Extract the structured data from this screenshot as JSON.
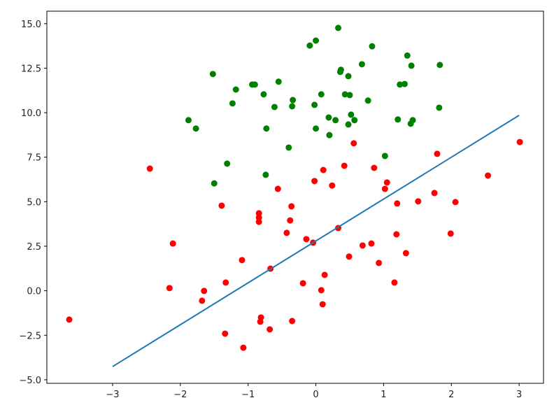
{
  "chart_data": {
    "type": "scatter",
    "xlim": [
      -3.97,
      3.36
    ],
    "ylim": [
      -5.2,
      15.7
    ],
    "xticks": [
      {
        "value": -3,
        "label": "−3"
      },
      {
        "value": -2,
        "label": "−2"
      },
      {
        "value": -1,
        "label": "−1"
      },
      0,
      1,
      2,
      3
    ],
    "yticks": [
      {
        "value": -5,
        "label": "−5.0"
      },
      {
        "value": -2.5,
        "label": "−2.5"
      },
      {
        "value": 0,
        "label": "0.0"
      },
      {
        "value": 2.5,
        "label": "2.5"
      },
      {
        "value": 5,
        "label": "5.0"
      },
      {
        "value": 7.5,
        "label": "7.5"
      },
      {
        "value": 10,
        "label": "10.0"
      },
      {
        "value": 12.5,
        "label": "12.5"
      },
      {
        "value": 15,
        "label": "15.0"
      }
    ],
    "series": [
      {
        "type": "scatter",
        "color": "#008000",
        "x": [
          0.33,
          0,
          -0.09,
          0.83,
          1.35,
          1.41,
          1.83,
          0.68,
          0.37,
          0.36,
          0.48,
          -1.52,
          -0.55,
          -0.94,
          -0.9,
          -1.18,
          1.24,
          1.31,
          -0.77,
          0.08,
          0.43,
          0.5,
          -0.34,
          -0.35,
          -0.61,
          -1.23,
          -0.02,
          0.77,
          1.82,
          0.52,
          0.19,
          0.29,
          0.57,
          1.21,
          1.43,
          1.4,
          -1.88,
          -1.77,
          -0.73,
          0,
          0.48,
          0.2,
          -0.4,
          1.02,
          -1.31,
          -0.74,
          -1.5
        ],
        "values": [
          14.76,
          14.05,
          13.77,
          13.73,
          13.21,
          12.64,
          12.68,
          12.72,
          12.41,
          12.29,
          12.05,
          12.17,
          11.74,
          11.58,
          11.58,
          11.3,
          11.58,
          11.61,
          11.03,
          11.03,
          11.03,
          10.99,
          10.71,
          10.36,
          10.32,
          10.52,
          10.44,
          10.68,
          10.28,
          9.89,
          9.73,
          9.58,
          9.58,
          9.62,
          9.58,
          9.38,
          9.58,
          9.11,
          9.11,
          9.11,
          9.34,
          8.74,
          8.04,
          7.57,
          7.14,
          6.51,
          6.03
        ]
      },
      {
        "type": "scatter",
        "color": "#ff0000",
        "x": [
          -3.64,
          -2.45,
          -2.11,
          -2.16,
          -1.65,
          -1.68,
          -1.39,
          -1.33,
          -1.34,
          -1.09,
          -1.07,
          -0.84,
          -0.84,
          -0.84,
          -0.81,
          -0.82,
          -0.68,
          -0.67,
          -0.56,
          -0.43,
          -0.38,
          -0.36,
          -0.35,
          -0.19,
          -0.14,
          -0.04,
          -0.02,
          0.11,
          0.08,
          0.1,
          0.13,
          0.24,
          0.33,
          0.42,
          0.49,
          0.56,
          0.69,
          0.82,
          0.86,
          0.93,
          1.02,
          1.05,
          1.16,
          1.19,
          1.2,
          1.33,
          1.51,
          1.75,
          1.79,
          1.99,
          2.06,
          2.54,
          3.01
        ],
        "values": [
          -1.62,
          6.86,
          2.65,
          0.15,
          -0.01,
          -0.56,
          4.78,
          0.46,
          -2.41,
          1.72,
          -3.2,
          4.35,
          4.11,
          3.87,
          -1.5,
          -1.74,
          -2.17,
          1.24,
          5.72,
          3.25,
          3.95,
          4.74,
          -1.7,
          0.42,
          2.9,
          2.7,
          6.16,
          6.78,
          0.03,
          -0.76,
          0.89,
          5.91,
          3.52,
          7.02,
          1.92,
          8.28,
          2.54,
          2.65,
          6.9,
          1.56,
          5.72,
          6.08,
          0.46,
          3.17,
          4.9,
          2.11,
          5.02,
          5.49,
          7.69,
          3.21,
          4.98,
          6.47,
          8.35
        ]
      },
      {
        "type": "line",
        "color": "#1f77b4",
        "x": [
          -3,
          3
        ],
        "values": [
          -4.26,
          9.85
        ]
      }
    ]
  }
}
